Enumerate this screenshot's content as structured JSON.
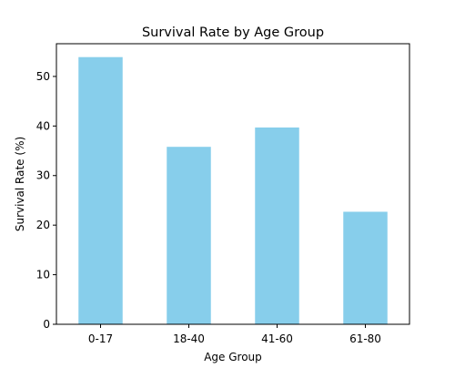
{
  "chart_data": {
    "type": "bar",
    "title": "Survival Rate by Age Group",
    "xlabel": "Age Group",
    "ylabel": "Survival Rate (%)",
    "categories": [
      "0-17",
      "18-40",
      "41-60",
      "61-80"
    ],
    "values": [
      53.9,
      35.8,
      39.7,
      22.7
    ],
    "ylim": [
      0,
      56.6
    ],
    "yticks": [
      0,
      10,
      20,
      30,
      40,
      50
    ],
    "grid": false,
    "colors": {
      "bar": "#87ceeb",
      "axis": "#000000",
      "background": "#ffffff"
    }
  }
}
